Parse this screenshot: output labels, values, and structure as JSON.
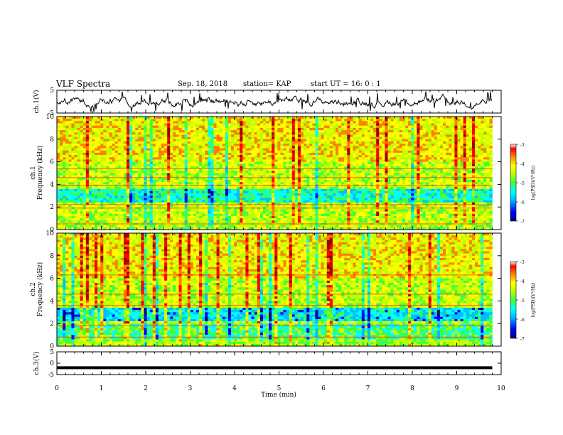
{
  "header": {
    "title": "VLF Spectra",
    "date": "Sep. 18, 2018",
    "station": "station= KAP",
    "start": "start  UT =   16: 0  : 1"
  },
  "chart_data": [
    {
      "type": "line",
      "panel": "ch1-waveform",
      "ylabel": "ch.1(V)",
      "ylim": [
        -5,
        5
      ],
      "yticks": [
        "5",
        "-5"
      ],
      "xlim": [
        0,
        10
      ],
      "description_series": "ch.1 voltage trace, fluctuating mainly between about -3 and 3 V"
    },
    {
      "type": "heatmap",
      "panel": "ch1-spectrogram",
      "ylabel": "ch.1\nFrequency (kHz)",
      "ylim": [
        0,
        10
      ],
      "yticks": [
        "0",
        "2",
        "4",
        "6",
        "8",
        "10"
      ],
      "xlim": [
        0,
        9.8
      ],
      "colorbar": {
        "label": "log(PSD)(V²/Hz)",
        "range": [
          -7,
          -3
        ],
        "ticks": [
          "-3",
          "-4",
          "-5",
          "-6",
          "-7"
        ]
      }
    },
    {
      "type": "heatmap",
      "panel": "ch2-spectrogram",
      "ylabel": "ch.2\nFrequency (kHz)",
      "ylim": [
        0,
        10
      ],
      "yticks": [
        "0",
        "2",
        "4",
        "6",
        "8",
        "10"
      ],
      "xlim": [
        0,
        9.8
      ],
      "colorbar": {
        "label": "log(PSD)(V²/Hz)",
        "range": [
          -7,
          -3
        ],
        "ticks": [
          "-3",
          "-4",
          "-5",
          "-6",
          "-7"
        ]
      }
    },
    {
      "type": "line",
      "panel": "ch3-waveform",
      "ylabel": "ch.3(V)",
      "ylim": [
        -5,
        5
      ],
      "yticks": [
        "5",
        "0",
        "-5"
      ],
      "x": [
        0,
        9.8
      ],
      "y": [
        -2,
        -2
      ]
    }
  ],
  "xaxis": {
    "label": "Time (min)",
    "ticks": [
      "0",
      "1",
      "2",
      "3",
      "4",
      "5",
      "6",
      "7",
      "8",
      "9",
      "10"
    ],
    "range": [
      0,
      10
    ]
  },
  "colors": {
    "cmap": [
      "#000080",
      "#0000ff",
      "#00bfff",
      "#00ffff",
      "#40ff40",
      "#bfff00",
      "#ffff00",
      "#ff8000",
      "#ff0000",
      "#a00000"
    ]
  }
}
